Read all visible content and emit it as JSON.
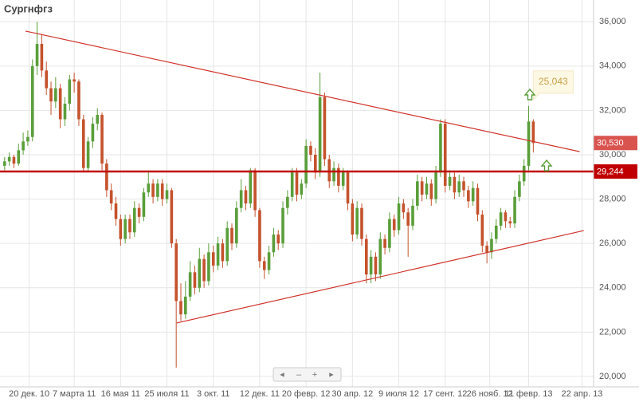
{
  "chart_data": {
    "type": "candlestick",
    "title": "Сургнфгз",
    "up_color": "#5a9e3a",
    "down_color": "#c4522c",
    "grid": true,
    "xlim": [
      -1,
      127
    ],
    "ylim": [
      19530,
      36980
    ],
    "yticks": [
      {
        "value": 20000,
        "label": "20,000"
      },
      {
        "value": 22000,
        "label": "22,000"
      },
      {
        "value": 24000,
        "label": "24,000"
      },
      {
        "value": 26000,
        "label": "26,000"
      },
      {
        "value": 28000,
        "label": "28,000"
      },
      {
        "value": 30000,
        "label": "30,000"
      },
      {
        "value": 32000,
        "label": "32,000"
      },
      {
        "value": 34000,
        "label": "34,000"
      },
      {
        "value": 36000,
        "label": "36,000"
      }
    ],
    "xticks": [
      {
        "value": 5.3,
        "label": "20 дек. 10"
      },
      {
        "value": 15,
        "label": "7 марта 11"
      },
      {
        "value": 25,
        "label": "16 мая 11"
      },
      {
        "value": 35,
        "label": "25 июля 11"
      },
      {
        "value": 45,
        "label": "3 окт. 11"
      },
      {
        "value": 55,
        "label": "12 дек. 11"
      },
      {
        "value": 65,
        "label": "20 февр. 12"
      },
      {
        "value": 75,
        "label": "30 апр. 12"
      },
      {
        "value": 85,
        "label": "9 июля 12"
      },
      {
        "value": 95,
        "label": "17 сент. 12"
      },
      {
        "value": 104.6,
        "label": "26 нояб. 12"
      },
      {
        "value": 113,
        "label": "11 февр. 13"
      },
      {
        "value": 124.5,
        "label": "22 апр. 13"
      }
    ],
    "ohlc": [
      [
        29500,
        29900,
        29300,
        29700
      ],
      [
        29700,
        30100,
        29500,
        29900
      ],
      [
        29900,
        30000,
        29400,
        29600
      ],
      [
        29600,
        30500,
        29500,
        30200
      ],
      [
        30200,
        31000,
        30000,
        30600
      ],
      [
        30600,
        31100,
        30400,
        30800
      ],
      [
        30800,
        34300,
        30600,
        34000
      ],
      [
        34000,
        36000,
        33600,
        35000
      ],
      [
        35000,
        35400,
        33500,
        33800
      ],
      [
        33800,
        34200,
        32700,
        33000
      ],
      [
        33000,
        33300,
        31800,
        32400
      ],
      [
        32400,
        33500,
        32100,
        33000
      ],
      [
        33000,
        33200,
        31200,
        31600
      ],
      [
        31600,
        32600,
        31300,
        32300
      ],
      [
        32300,
        33600,
        32000,
        33400
      ],
      [
        33400,
        33700,
        32800,
        33300
      ],
      [
        33300,
        33400,
        31300,
        31600
      ],
      [
        31600,
        31800,
        29200,
        29400
      ],
      [
        29400,
        30800,
        29200,
        30600
      ],
      [
        30600,
        31700,
        30300,
        31400
      ],
      [
        31400,
        32100,
        31100,
        31800
      ],
      [
        31800,
        31900,
        29300,
        29600
      ],
      [
        29600,
        29800,
        28100,
        28400
      ],
      [
        28400,
        28700,
        27500,
        27800
      ],
      [
        27800,
        28100,
        26800,
        27100
      ],
      [
        27100,
        27300,
        25900,
        26200
      ],
      [
        26200,
        27300,
        26000,
        27100
      ],
      [
        27100,
        27300,
        26200,
        26500
      ],
      [
        26500,
        27900,
        26300,
        27600
      ],
      [
        27600,
        27800,
        26900,
        27200
      ],
      [
        27200,
        28500,
        27000,
        28300
      ],
      [
        28300,
        29300,
        28100,
        28700
      ],
      [
        28700,
        28900,
        27800,
        28100
      ],
      [
        28100,
        28900,
        27900,
        28700
      ],
      [
        28700,
        28900,
        27700,
        28000
      ],
      [
        28000,
        28700,
        27800,
        28400
      ],
      [
        28400,
        28500,
        25800,
        26000
      ],
      [
        26000,
        26200,
        20400,
        23400
      ],
      [
        23400,
        24200,
        22500,
        22800
      ],
      [
        22800,
        24300,
        22600,
        23600
      ],
      [
        23600,
        25200,
        23400,
        24700
      ],
      [
        24700,
        25000,
        23700,
        24000
      ],
      [
        24000,
        25800,
        23800,
        25300
      ],
      [
        25300,
        25500,
        24000,
        24300
      ],
      [
        24300,
        26000,
        24100,
        25600
      ],
      [
        25600,
        25900,
        24700,
        25000
      ],
      [
        25000,
        26300,
        24800,
        26000
      ],
      [
        26000,
        26200,
        24900,
        25200
      ],
      [
        25200,
        27000,
        25000,
        26700
      ],
      [
        26700,
        26900,
        25700,
        26000
      ],
      [
        26000,
        27900,
        25800,
        27600
      ],
      [
        27600,
        28900,
        27400,
        28400
      ],
      [
        28400,
        28600,
        27500,
        27800
      ],
      [
        27800,
        29400,
        27600,
        29300
      ],
      [
        29300,
        29400,
        27200,
        27500
      ],
      [
        27500,
        27600,
        24900,
        25200
      ],
      [
        25200,
        25400,
        24400,
        24800
      ],
      [
        24800,
        25900,
        24600,
        25600
      ],
      [
        25600,
        26700,
        25400,
        26400
      ],
      [
        26400,
        26600,
        25700,
        26000
      ],
      [
        26000,
        27900,
        25800,
        27600
      ],
      [
        27600,
        28400,
        27300,
        28100
      ],
      [
        28100,
        29400,
        27900,
        29200
      ],
      [
        29200,
        29400,
        27900,
        28200
      ],
      [
        28200,
        28900,
        28000,
        28700
      ],
      [
        28700,
        30700,
        28500,
        30400
      ],
      [
        30400,
        30600,
        29700,
        30000
      ],
      [
        30000,
        30300,
        28900,
        29200
      ],
      [
        29200,
        33700,
        29000,
        32600
      ],
      [
        32600,
        32800,
        29500,
        29800
      ],
      [
        29800,
        30000,
        28500,
        28800
      ],
      [
        28800,
        29700,
        28600,
        29400
      ],
      [
        29400,
        29600,
        28300,
        28600
      ],
      [
        28600,
        29400,
        28400,
        29200
      ],
      [
        29200,
        29300,
        27500,
        27800
      ],
      [
        27800,
        28000,
        26100,
        26400
      ],
      [
        26400,
        27900,
        26200,
        27600
      ],
      [
        27600,
        27800,
        25900,
        26200
      ],
      [
        26200,
        26400,
        24200,
        24600
      ],
      [
        24600,
        25700,
        24200,
        25400
      ],
      [
        25400,
        25600,
        24300,
        24600
      ],
      [
        24600,
        26500,
        24400,
        26200
      ],
      [
        26200,
        26400,
        25500,
        25800
      ],
      [
        25800,
        27400,
        25600,
        27100
      ],
      [
        27100,
        27300,
        26300,
        26600
      ],
      [
        26600,
        28100,
        26400,
        27800
      ],
      [
        27800,
        28000,
        27100,
        27400
      ],
      [
        27400,
        27600,
        25400,
        26800
      ],
      [
        26800,
        28000,
        26600,
        27700
      ],
      [
        27700,
        29100,
        27500,
        28800
      ],
      [
        28800,
        29000,
        27900,
        28200
      ],
      [
        28200,
        29000,
        28000,
        28700
      ],
      [
        28700,
        28900,
        27700,
        28000
      ],
      [
        28000,
        29500,
        27800,
        29200
      ],
      [
        29200,
        31600,
        29000,
        31400
      ],
      [
        31400,
        31600,
        28300,
        28600
      ],
      [
        28600,
        29300,
        28400,
        29000
      ],
      [
        29000,
        29200,
        28000,
        28300
      ],
      [
        28300,
        29100,
        28100,
        28800
      ],
      [
        28800,
        29000,
        28100,
        28400
      ],
      [
        28400,
        28600,
        27600,
        27900
      ],
      [
        27900,
        28800,
        27700,
        28500
      ],
      [
        28500,
        28700,
        27000,
        27300
      ],
      [
        27300,
        27500,
        25600,
        25900
      ],
      [
        25900,
        26100,
        25100,
        25600
      ],
      [
        25600,
        26500,
        25300,
        26200
      ],
      [
        26200,
        27100,
        26000,
        26800
      ],
      [
        26800,
        27600,
        26600,
        27400
      ],
      [
        27400,
        27500,
        26700,
        27000
      ],
      [
        27000,
        27200,
        26700,
        26900
      ],
      [
        26900,
        28400,
        26700,
        28100
      ],
      [
        28100,
        29100,
        27900,
        28800
      ],
      [
        28800,
        29800,
        28600,
        29500
      ],
      [
        29500,
        32200,
        29300,
        31500
      ],
      [
        31500,
        31600,
        30100,
        30530
      ]
    ],
    "trendlines": [
      {
        "color": "#d0342c",
        "x": [
          4.5,
          124
        ],
        "y": [
          35580,
          30140
        ]
      },
      {
        "color": "#d0342c",
        "x": [
          37.1,
          124.9
        ],
        "y": [
          22410,
          26580
        ]
      }
    ],
    "levels": [
      {
        "value": 30530,
        "label": "30,530",
        "color": "#d9534f",
        "line": false
      },
      {
        "value": 29244,
        "label": "29,244",
        "color": "#c00000",
        "line": true
      }
    ],
    "annotation": {
      "x": 114,
      "y": 33280,
      "label": "25,043"
    },
    "nav": [
      "◄",
      "–",
      "+",
      "►"
    ]
  }
}
